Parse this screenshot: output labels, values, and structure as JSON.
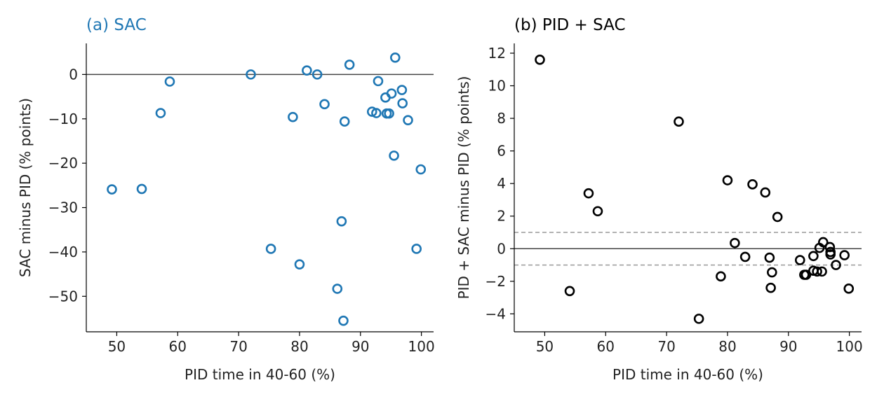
{
  "chart_data": [
    {
      "type": "scatter",
      "title": "(a) SAC",
      "xlabel": "PID time in 40-60 (%)",
      "ylabel": "SAC minus PID (% points)",
      "xlim": [
        45,
        102
      ],
      "ylim": [
        -58,
        7
      ],
      "xticks": [
        50,
        60,
        70,
        80,
        90,
        100
      ],
      "yticks": [
        0,
        -10,
        -20,
        -30,
        -40,
        -50
      ],
      "ytick_labels": [
        "0",
        "−10",
        "−20",
        "−30",
        "−40",
        "−50"
      ],
      "title_color": "#1f77b4",
      "marker_color": "#1f77b4",
      "marker": "open-circle",
      "reference_lines": [
        {
          "y": 0,
          "style": "solid",
          "color": "#444444"
        }
      ],
      "grid": false,
      "points": [
        [
          49.2,
          -25.9
        ],
        [
          54.1,
          -25.8
        ],
        [
          57.2,
          -8.7
        ],
        [
          58.7,
          -1.6
        ],
        [
          72.0,
          0.0
        ],
        [
          75.3,
          -39.3
        ],
        [
          78.9,
          -9.6
        ],
        [
          80.0,
          -42.8
        ],
        [
          81.2,
          0.9
        ],
        [
          82.9,
          0.0
        ],
        [
          84.1,
          -6.7
        ],
        [
          86.2,
          -48.3
        ],
        [
          86.9,
          -33.1
        ],
        [
          87.2,
          -55.5
        ],
        [
          87.4,
          -10.6
        ],
        [
          88.2,
          2.2
        ],
        [
          91.9,
          -8.4
        ],
        [
          92.6,
          -8.7
        ],
        [
          92.9,
          -1.5
        ],
        [
          94.1,
          -5.2
        ],
        [
          94.3,
          -8.8
        ],
        [
          94.7,
          -8.8
        ],
        [
          95.1,
          -4.3
        ],
        [
          95.5,
          -18.3
        ],
        [
          95.7,
          3.8
        ],
        [
          96.8,
          -3.5
        ],
        [
          96.9,
          -6.5
        ],
        [
          97.8,
          -10.3
        ],
        [
          99.2,
          -39.3
        ],
        [
          99.9,
          -21.4
        ]
      ]
    },
    {
      "type": "scatter",
      "title": "(b) PID + SAC",
      "xlabel": "PID time in 40-60 (%)",
      "ylabel": "PID + SAC minus PID (% points)",
      "xlim": [
        45,
        102
      ],
      "ylim": [
        -5.1,
        12.6
      ],
      "xticks": [
        50,
        60,
        70,
        80,
        90,
        100
      ],
      "yticks": [
        12,
        10,
        8,
        6,
        4,
        2,
        0,
        -2,
        -4
      ],
      "ytick_labels": [
        "12",
        "10",
        "8",
        "6",
        "4",
        "2",
        "0",
        "−2",
        "−4"
      ],
      "title_color": "#000000",
      "marker_color": "#000000",
      "marker": "open-circle",
      "reference_lines": [
        {
          "y": 0,
          "style": "solid",
          "color": "#444444"
        },
        {
          "y": 1,
          "style": "dashed",
          "color": "#999999"
        },
        {
          "y": -1,
          "style": "dashed",
          "color": "#999999"
        }
      ],
      "grid": false,
      "points": [
        [
          49.2,
          11.6
        ],
        [
          54.1,
          -2.6
        ],
        [
          57.2,
          3.4
        ],
        [
          58.7,
          2.3
        ],
        [
          72.0,
          7.8
        ],
        [
          75.3,
          -4.3
        ],
        [
          78.9,
          -1.7
        ],
        [
          80.0,
          4.2
        ],
        [
          81.2,
          0.35
        ],
        [
          82.9,
          -0.5
        ],
        [
          84.1,
          3.95
        ],
        [
          86.2,
          3.45
        ],
        [
          86.9,
          -0.55
        ],
        [
          87.1,
          -2.4
        ],
        [
          87.3,
          -1.45
        ],
        [
          88.2,
          1.95
        ],
        [
          91.9,
          -0.7
        ],
        [
          92.6,
          -1.6
        ],
        [
          92.9,
          -1.6
        ],
        [
          94.1,
          -0.45
        ],
        [
          94.1,
          -1.35
        ],
        [
          94.7,
          -1.4
        ],
        [
          95.1,
          0.05
        ],
        [
          95.5,
          -1.4
        ],
        [
          95.7,
          0.4
        ],
        [
          96.8,
          0.1
        ],
        [
          96.9,
          -0.2
        ],
        [
          96.9,
          -0.35
        ],
        [
          97.8,
          -1.0
        ],
        [
          99.2,
          -0.4
        ],
        [
          99.9,
          -2.45
        ]
      ]
    }
  ]
}
